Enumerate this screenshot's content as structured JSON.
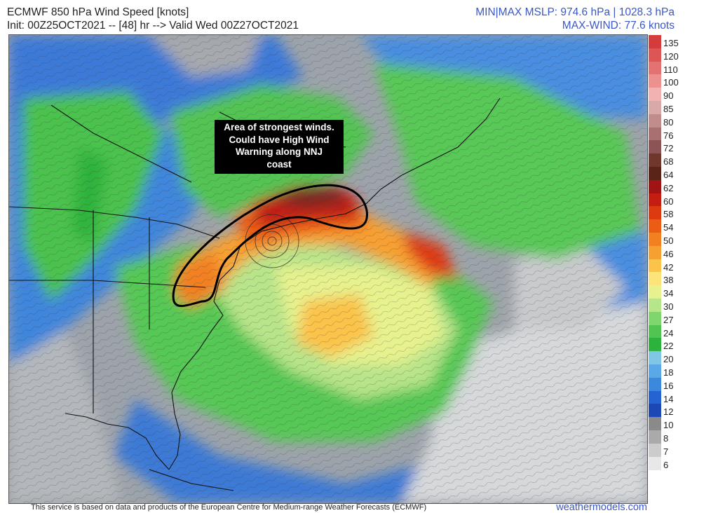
{
  "header": {
    "title": "ECMWF 850 hPa Wind Speed [knots]",
    "init_line": "Init: 00Z25OCT2021 -- [48] hr --> Valid Wed 00Z27OCT2021",
    "mslp_line": "MIN|MAX MSLP: 974.6 hPa | 1028.3 hPa",
    "maxwind_line": "MAX-WIND: 77.6 knots"
  },
  "annotation": {
    "lines": [
      "Area of strongest winds.",
      "Could have High Wind",
      "Warning along NNJ",
      "coast"
    ]
  },
  "colorbar": {
    "labels": [
      "135",
      "120",
      "110",
      "100",
      "90",
      "85",
      "80",
      "76",
      "72",
      "68",
      "64",
      "62",
      "60",
      "58",
      "54",
      "50",
      "46",
      "42",
      "38",
      "34",
      "30",
      "27",
      "24",
      "22",
      "20",
      "18",
      "16",
      "14",
      "12",
      "10",
      "8",
      "7",
      "6"
    ],
    "colors": [
      "#d43c3c",
      "#dc5656",
      "#e47272",
      "#ec9090",
      "#f3b2b2",
      "#d9a8a8",
      "#c08c8c",
      "#a87070",
      "#8c5454",
      "#70382c",
      "#5a2418",
      "#a01414",
      "#c41e12",
      "#de3a12",
      "#ec5c14",
      "#f28020",
      "#f7a032",
      "#fbc34a",
      "#fde47a",
      "#e7f28e",
      "#b5e68a",
      "#7fd66e",
      "#52c452",
      "#2eb23e",
      "#82c6e6",
      "#5aa8e6",
      "#3c88dc",
      "#2464d2",
      "#1c48b6",
      "#8a8a8a",
      "#aaaaaa",
      "#cccccc",
      "#e8e8e8"
    ]
  },
  "footer": {
    "disclaimer": "This service is based on data and products of the European Centre for Medium-range Weather Forecasts (ECMWF)",
    "brand": "weathermodels.com"
  }
}
